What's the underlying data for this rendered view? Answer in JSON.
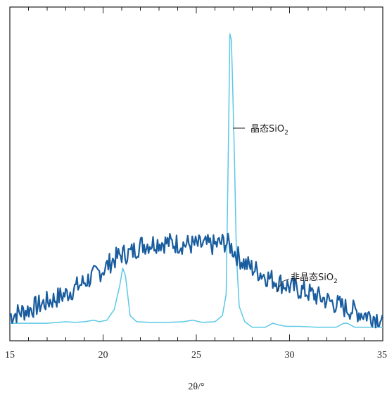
{
  "chart_data": {
    "type": "line",
    "title": "",
    "xlabel": "2θ/°",
    "ylabel": "",
    "xlim": [
      15,
      35
    ],
    "ylim": [
      0,
      100
    ],
    "xticks": [
      15,
      20,
      25,
      30,
      35
    ],
    "grid": false,
    "legend": "none",
    "series": [
      {
        "name": "晶态SiO₂",
        "color": "#5bc8e6",
        "x": [
          15,
          16,
          17,
          18,
          18.5,
          19,
          19.5,
          19.8,
          20.2,
          20.6,
          20.9,
          21.05,
          21.2,
          21.45,
          21.8,
          22.5,
          23.5,
          24.3,
          24.8,
          25.3,
          26,
          26.4,
          26.6,
          26.72,
          26.8,
          26.88,
          26.95,
          27.05,
          27.15,
          27.3,
          27.6,
          28,
          28.7,
          29.1,
          29.4,
          29.8,
          30.5,
          31.5,
          32.5,
          32.9,
          33.1,
          33.5,
          34,
          35
        ],
        "y": [
          2.5,
          2.5,
          2.5,
          3,
          2.8,
          3,
          3.5,
          3,
          3.5,
          7,
          15,
          20.5,
          18,
          5,
          3,
          2.8,
          2.8,
          3,
          3.5,
          2.8,
          3,
          5,
          12,
          60,
          97,
          95,
          80,
          55,
          25,
          8,
          3,
          1.2,
          1.2,
          2.5,
          2,
          1.5,
          1.5,
          1.2,
          1.2,
          2.5,
          2.5,
          1.2,
          1.2,
          1.2
        ]
      },
      {
        "name": "非晶态SiO₂",
        "color": "#1a5d9e",
        "x": [
          15,
          16,
          17,
          18,
          19,
          20,
          20.5,
          21,
          21.5,
          22,
          23,
          24,
          25,
          26,
          26.5,
          26.8,
          27.2,
          27.6,
          28,
          29,
          30,
          31,
          32,
          33,
          34,
          35
        ],
        "y": [
          5,
          7,
          9.5,
          12,
          16,
          20,
          23,
          25,
          25.5,
          28,
          29,
          28.5,
          28,
          28,
          29,
          28,
          24.5,
          22,
          20.5,
          17,
          14.5,
          12.5,
          10,
          7.5,
          5.5,
          4
        ]
      }
    ],
    "annotations": [
      {
        "text": "晶态SiO",
        "sub": "2",
        "points_to": "晶态SiO₂"
      },
      {
        "text": "非晶态SiO",
        "sub": "2",
        "points_to": "非晶态SiO₂"
      }
    ]
  }
}
